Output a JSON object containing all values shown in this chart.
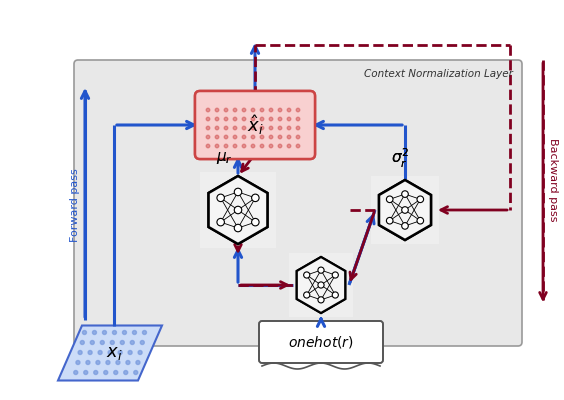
{
  "title": "Context Normalization Layer",
  "bg_color": "#e8e8e8",
  "blue": "#2255cc",
  "dark_red": "#800020",
  "pink_fill": "#f8d0d0",
  "pink_border": "#cc4444",
  "light_blue_fill": "#ccdcf8",
  "light_blue_border": "#4466cc",
  "node_fill": "#f5f5f5",
  "forward_pass": "Forward pass",
  "backward_pass": "Backward pass",
  "label_xi": "$x_i$",
  "label_xhat": "$\\hat{x}_i$",
  "label_mu": "$\\mu_r$",
  "label_sigma": "$\\sigma_r^2$",
  "label_onehot": "$onehot(r)$"
}
